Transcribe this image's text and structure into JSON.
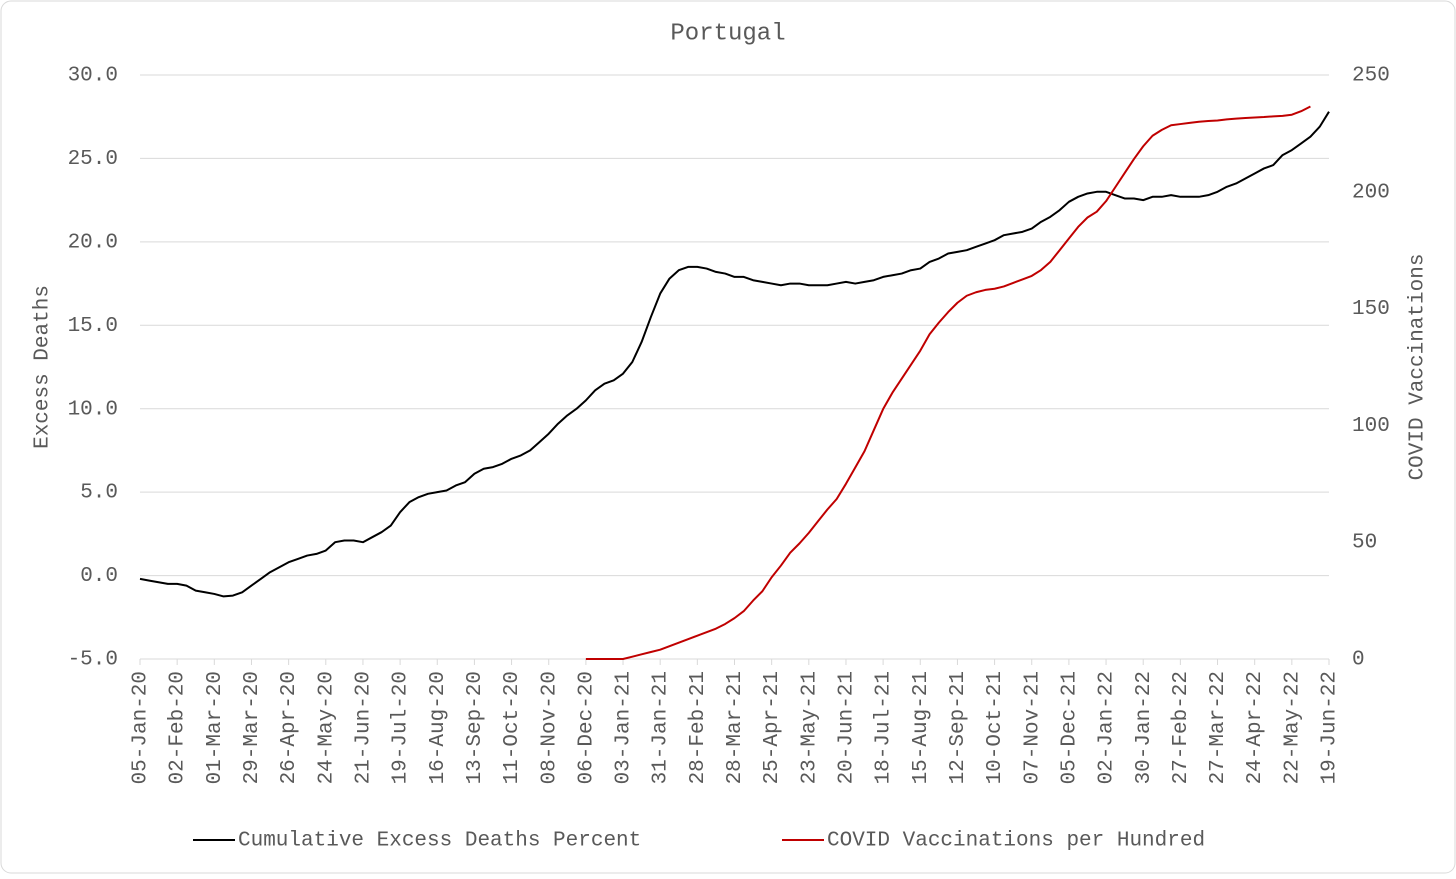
{
  "chart_data": {
    "type": "line",
    "title": "Portugal",
    "y_label": "Excess Deaths",
    "y2_label": "COVID Vaccinations",
    "categories": [
      "05-Jan-20",
      null,
      null,
      null,
      "02-Feb-20",
      null,
      null,
      null,
      "01-Mar-20",
      null,
      null,
      null,
      "29-Mar-20",
      null,
      null,
      null,
      "26-Apr-20",
      null,
      null,
      null,
      "24-May-20",
      null,
      null,
      null,
      "21-Jun-20",
      null,
      null,
      null,
      "19-Jul-20",
      null,
      null,
      null,
      "16-Aug-20",
      null,
      null,
      null,
      "13-Sep-20",
      null,
      null,
      null,
      "11-Oct-20",
      null,
      null,
      null,
      "08-Nov-20",
      null,
      null,
      null,
      "06-Dec-20",
      null,
      null,
      null,
      "03-Jan-21",
      null,
      null,
      null,
      "31-Jan-21",
      null,
      null,
      null,
      "28-Feb-21",
      null,
      null,
      null,
      "28-Mar-21",
      null,
      null,
      null,
      "25-Apr-21",
      null,
      null,
      null,
      "23-May-21",
      null,
      null,
      null,
      "20-Jun-21",
      null,
      null,
      null,
      "18-Jul-21",
      null,
      null,
      null,
      "15-Aug-21",
      null,
      null,
      null,
      "12-Sep-21",
      null,
      null,
      null,
      "10-Oct-21",
      null,
      null,
      null,
      "07-Nov-21",
      null,
      null,
      null,
      "05-Dec-21",
      null,
      null,
      null,
      "02-Jan-22",
      null,
      null,
      null,
      "30-Jan-22",
      null,
      null,
      null,
      "27-Feb-22",
      null,
      null,
      null,
      "27-Mar-22",
      null,
      null,
      null,
      "24-Apr-22",
      null,
      null,
      null,
      "22-May-22",
      null,
      null,
      null,
      "19-Jun-22"
    ],
    "series": [
      {
        "name": "Cumulative Excess Deaths Percent",
        "color": "#000000",
        "axis": "y",
        "values": [
          -0.2,
          -0.3,
          -0.4,
          -0.5,
          -0.5,
          -0.6,
          -0.9,
          -1.0,
          -1.1,
          -1.25,
          -1.2,
          -1.0,
          -0.6,
          -0.2,
          0.2,
          0.5,
          0.8,
          1.0,
          1.2,
          1.3,
          1.5,
          2.0,
          2.1,
          2.1,
          2.0,
          2.3,
          2.6,
          3.0,
          3.8,
          4.4,
          4.7,
          4.9,
          5.0,
          5.1,
          5.4,
          5.6,
          6.1,
          6.4,
          6.5,
          6.7,
          7.0,
          7.2,
          7.5,
          8.0,
          8.5,
          9.1,
          9.6,
          10.0,
          10.5,
          11.1,
          11.5,
          11.7,
          12.1,
          12.8,
          14.0,
          15.5,
          16.9,
          17.8,
          18.3,
          18.5,
          18.5,
          18.4,
          18.2,
          18.1,
          17.9,
          17.9,
          17.7,
          17.6,
          17.5,
          17.4,
          17.5,
          17.5,
          17.4,
          17.4,
          17.4,
          17.5,
          17.6,
          17.5,
          17.6,
          17.7,
          17.9,
          18.0,
          18.1,
          18.3,
          18.4,
          18.8,
          19.0,
          19.3,
          19.4,
          19.5,
          19.7,
          19.9,
          20.1,
          20.4,
          20.5,
          20.6,
          20.8,
          21.2,
          21.5,
          21.9,
          22.4,
          22.7,
          22.9,
          23.0,
          23.0,
          22.8,
          22.6,
          22.6,
          22.5,
          22.7,
          22.7,
          22.8,
          22.7,
          22.7,
          22.7,
          22.8,
          23.0,
          23.3,
          23.5,
          23.8,
          24.1,
          24.4,
          24.6,
          25.2,
          25.5,
          25.9,
          26.3,
          26.9,
          27.8
        ]
      },
      {
        "name": "COVID Vaccinations per Hundred",
        "color": "#c00000",
        "axis": "y2",
        "values": [
          null,
          null,
          null,
          null,
          null,
          null,
          null,
          null,
          null,
          null,
          null,
          null,
          null,
          null,
          null,
          null,
          null,
          null,
          null,
          null,
          null,
          null,
          null,
          null,
          null,
          null,
          null,
          null,
          null,
          null,
          null,
          null,
          null,
          null,
          null,
          null,
          null,
          null,
          null,
          null,
          null,
          null,
          null,
          null,
          null,
          null,
          null,
          null,
          0,
          0,
          0,
          0,
          0,
          1,
          2,
          3,
          4,
          5.5,
          7,
          8.5,
          10,
          11.5,
          13,
          15,
          17.5,
          20.5,
          25,
          29,
          35,
          40,
          45.5,
          49.5,
          54,
          59,
          64,
          68.5,
          75,
          82,
          89,
          98,
          107,
          114,
          120,
          126,
          132,
          139,
          144,
          148.5,
          152.5,
          155.5,
          157,
          158,
          158.5,
          159.5,
          161,
          162.5,
          164,
          166.5,
          170,
          175,
          180,
          185,
          189,
          191.5,
          196,
          202,
          208,
          214,
          219.5,
          224,
          226.5,
          228.5,
          229,
          229.5,
          230,
          230.3,
          230.5,
          231,
          231.3,
          231.6,
          231.8,
          232,
          232.3,
          232.5,
          233,
          234.5,
          236.5,
          null,
          null
        ]
      }
    ],
    "ylim": [
      -5,
      30
    ],
    "yticks": [
      {
        "value": -5,
        "label": "-5.0"
      },
      {
        "value": 0,
        "label": "0.0"
      },
      {
        "value": 5,
        "label": "5.0"
      },
      {
        "value": 10,
        "label": "10.0"
      },
      {
        "value": 15,
        "label": "15.0"
      },
      {
        "value": 20,
        "label": "20.0"
      },
      {
        "value": 25,
        "label": "25.0"
      },
      {
        "value": 30,
        "label": "30.0"
      }
    ],
    "y2lim": [
      0,
      250
    ],
    "y2ticks": [
      0,
      50,
      100,
      150,
      200,
      250
    ],
    "grid": true,
    "legend": "bottom"
  }
}
